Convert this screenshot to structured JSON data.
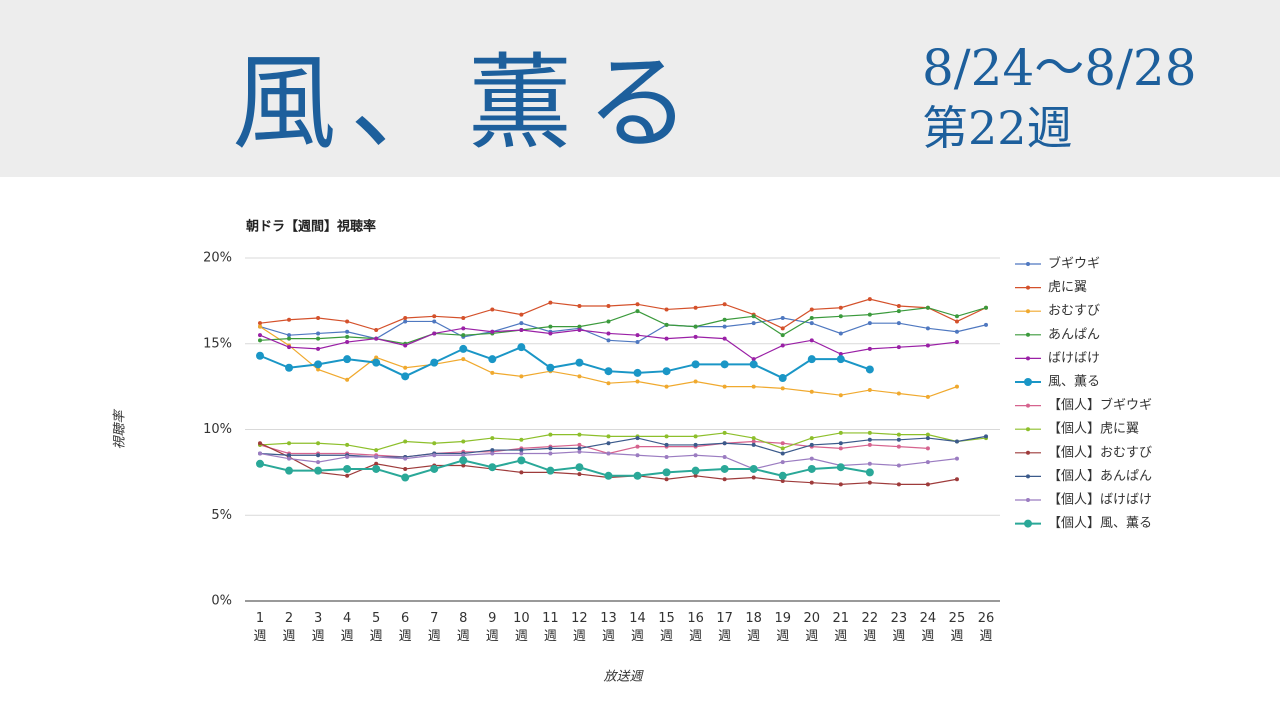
{
  "header": {
    "title": "風、薫る",
    "dates": "8/24～8/28",
    "week": "第22週"
  },
  "chart_data": {
    "type": "line",
    "title": "朝ドラ【週間】視聴率",
    "y_label": "視聴率",
    "x_label": "放送週",
    "categories": [
      "1\n週",
      "2\n週",
      "3\n週",
      "4\n週",
      "5\n週",
      "6\n週",
      "7\n週",
      "8\n週",
      "9\n週",
      "10\n週",
      "11\n週",
      "12\n週",
      "13\n週",
      "14\n週",
      "15\n週",
      "16\n週",
      "17\n週",
      "18\n週",
      "19\n週",
      "20\n週",
      "21\n週",
      "22\n週",
      "23\n週",
      "24\n週",
      "25\n週",
      "26\n週"
    ],
    "ylim": [
      0,
      20
    ],
    "yticks": [
      {
        "value": 0,
        "label": "0%"
      },
      {
        "value": 5,
        "label": "5%"
      },
      {
        "value": 10,
        "label": "10%"
      },
      {
        "value": 15,
        "label": "15%"
      },
      {
        "value": 20,
        "label": "20%"
      }
    ],
    "grid": true,
    "legend": "right",
    "series": [
      {
        "name": "ブギウギ",
        "color": "#4f78c0",
        "values": [
          16.0,
          15.5,
          15.6,
          15.7,
          15.3,
          16.3,
          16.3,
          15.4,
          15.7,
          16.2,
          15.7,
          15.9,
          15.2,
          15.1,
          16.1,
          16.0,
          16.0,
          16.2,
          16.5,
          16.2,
          15.6,
          16.2,
          16.2,
          15.9,
          15.7,
          16.1
        ]
      },
      {
        "name": "虎に翼",
        "color": "#d4512b",
        "values": [
          16.2,
          16.4,
          16.5,
          16.3,
          15.8,
          16.5,
          16.6,
          16.5,
          17.0,
          16.7,
          17.4,
          17.2,
          17.2,
          17.3,
          17.0,
          17.1,
          17.3,
          16.7,
          15.9,
          17.0,
          17.1,
          17.6,
          17.2,
          17.1,
          16.3,
          17.1
        ]
      },
      {
        "name": "おむすび",
        "color": "#f0a92e",
        "values": [
          16.0,
          14.9,
          13.5,
          12.9,
          14.2,
          13.6,
          13.8,
          14.1,
          13.3,
          13.1,
          13.4,
          13.1,
          12.7,
          12.8,
          12.5,
          12.8,
          12.5,
          12.5,
          12.4,
          12.2,
          12.0,
          12.3,
          12.1,
          11.9,
          12.5,
          null
        ]
      },
      {
        "name": "あんぱん",
        "color": "#3b9a3c",
        "values": [
          15.2,
          15.3,
          15.3,
          15.4,
          15.3,
          15.0,
          15.6,
          15.5,
          15.6,
          15.8,
          16.0,
          16.0,
          16.3,
          16.9,
          16.1,
          16.0,
          16.4,
          16.6,
          15.5,
          16.5,
          16.6,
          16.7,
          16.9,
          17.1,
          16.6,
          17.1
        ]
      },
      {
        "name": "ばけばけ",
        "color": "#9a20a6",
        "values": [
          15.5,
          14.8,
          14.7,
          15.1,
          15.3,
          14.9,
          15.6,
          15.9,
          15.7,
          15.8,
          15.6,
          15.8,
          15.6,
          15.5,
          15.3,
          15.4,
          15.3,
          14.1,
          14.9,
          15.2,
          14.4,
          14.7,
          14.8,
          14.9,
          15.1,
          null
        ]
      },
      {
        "name": "風、薫る",
        "color": "#1a96c6",
        "values": [
          14.3,
          13.6,
          13.8,
          14.1,
          13.9,
          13.1,
          13.9,
          14.7,
          14.1,
          14.8,
          13.6,
          13.9,
          13.4,
          13.3,
          13.4,
          13.8,
          13.8,
          13.8,
          13.0,
          14.1,
          14.1,
          13.5,
          null,
          null,
          null,
          null
        ]
      },
      {
        "name": "【個人】ブギウギ",
        "color": "#d6638e",
        "values": [
          9.1,
          8.6,
          8.6,
          8.6,
          8.5,
          8.4,
          8.6,
          8.7,
          8.7,
          8.9,
          9.0,
          9.1,
          8.6,
          9.0,
          9.0,
          9.0,
          9.2,
          9.3,
          9.2,
          9.0,
          8.9,
          9.1,
          9.0,
          8.9,
          null,
          null
        ]
      },
      {
        "name": "【個人】虎に翼",
        "color": "#8dbf2b",
        "values": [
          9.1,
          9.2,
          9.2,
          9.1,
          8.8,
          9.3,
          9.2,
          9.3,
          9.5,
          9.4,
          9.7,
          9.7,
          9.6,
          9.6,
          9.6,
          9.6,
          9.8,
          9.5,
          8.9,
          9.5,
          9.8,
          9.8,
          9.7,
          9.7,
          9.3,
          9.5
        ]
      },
      {
        "name": "【個人】おむすび",
        "color": "#9e3b3b",
        "values": [
          9.2,
          8.4,
          7.5,
          7.3,
          8.0,
          7.7,
          7.9,
          7.9,
          7.7,
          7.5,
          7.5,
          7.4,
          7.2,
          7.3,
          7.1,
          7.3,
          7.1,
          7.2,
          7.0,
          6.9,
          6.8,
          6.9,
          6.8,
          6.8,
          7.1,
          null
        ]
      },
      {
        "name": "【個人】あんぱん",
        "color": "#3b5a8b",
        "values": [
          8.6,
          8.5,
          8.5,
          8.5,
          8.4,
          8.4,
          8.6,
          8.6,
          8.8,
          8.8,
          8.9,
          8.9,
          9.2,
          9.5,
          9.1,
          9.1,
          9.2,
          9.1,
          8.6,
          9.1,
          9.2,
          9.4,
          9.4,
          9.5,
          9.3,
          9.6
        ]
      },
      {
        "name": "【個人】ばけばけ",
        "color": "#9b7cc1",
        "values": [
          8.6,
          8.3,
          8.1,
          8.4,
          8.4,
          8.3,
          8.5,
          8.5,
          8.6,
          8.6,
          8.6,
          8.7,
          8.6,
          8.5,
          8.4,
          8.5,
          8.4,
          7.7,
          8.1,
          8.3,
          7.9,
          8.0,
          7.9,
          8.1,
          8.3,
          null
        ]
      },
      {
        "name": "【個人】風、薫る",
        "color": "#2aa898",
        "values": [
          8.0,
          7.6,
          7.6,
          7.7,
          7.7,
          7.2,
          7.7,
          8.2,
          7.8,
          8.2,
          7.6,
          7.8,
          7.3,
          7.3,
          7.5,
          7.6,
          7.7,
          7.7,
          7.3,
          7.7,
          7.8,
          7.5,
          null,
          null,
          null,
          null
        ]
      }
    ]
  }
}
